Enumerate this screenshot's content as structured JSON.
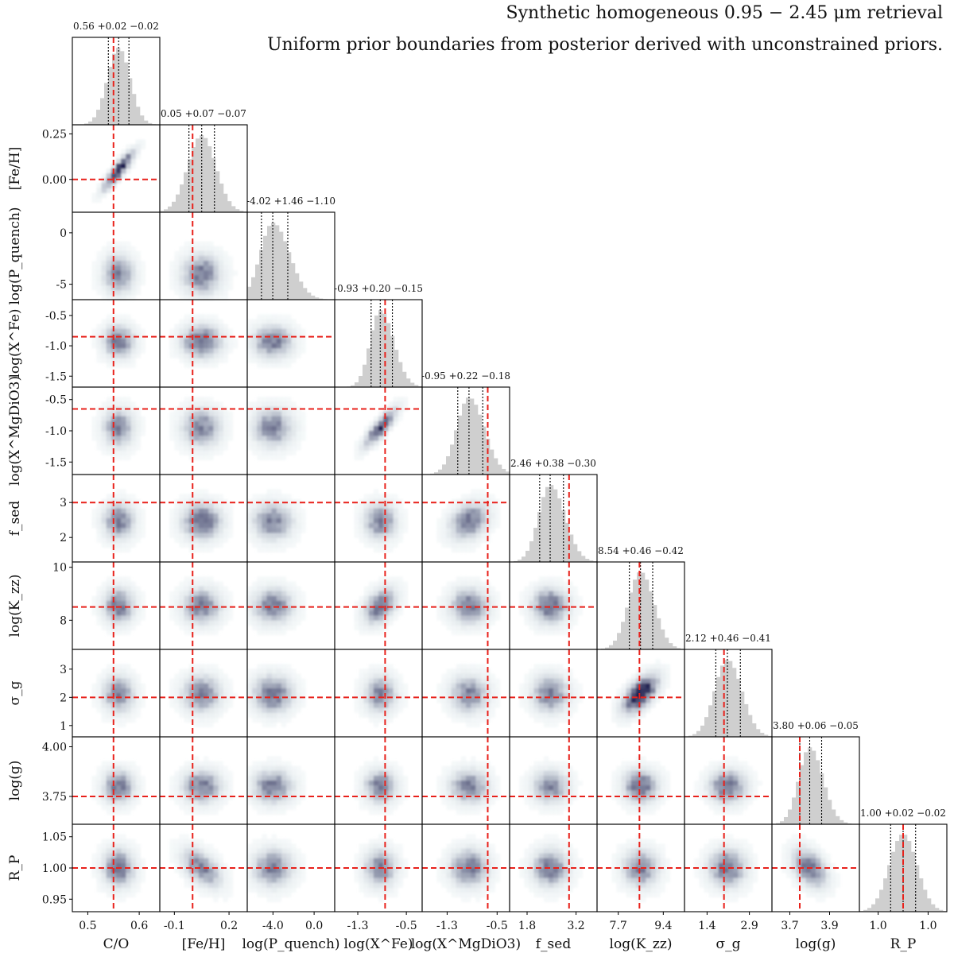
{
  "title": {
    "line1": "Synthetic homogeneous 0.95 − 2.45 μm retrieval",
    "line2": "Uniform prior boundaries from posterior derived with unconstrained priors."
  },
  "colors": {
    "truth": "#e8211b",
    "hist": "#cfcfcf",
    "density_low": "#e4eef0",
    "density_high": "#1f1f4f",
    "frame": "#000000"
  },
  "chart_data": {
    "type": "corner",
    "n_params": 10,
    "params": [
      {
        "name": "C/O",
        "stat": "0.56 +0.02 −0.02",
        "median": 0.56,
        "err_plus": 0.02,
        "err_minus": 0.02,
        "truth": 0.55,
        "range": [
          0.47,
          0.64
        ],
        "ticks": [
          "0.5",
          "0.6"
        ],
        "tick_vals": [
          0.5,
          0.6
        ],
        "ytick_labels": []
      },
      {
        "name": "[Fe/H]",
        "stat": "0.05 +0.07 −0.07",
        "median": 0.05,
        "err_plus": 0.07,
        "err_minus": 0.07,
        "truth": 0.0,
        "range": [
          -0.18,
          0.3
        ],
        "ticks": [
          "-0.1",
          "0.2"
        ],
        "tick_vals": [
          -0.1,
          0.2
        ],
        "ytick_labels": [
          "0.25",
          "0.00"
        ],
        "ytick_vals": [
          0.25,
          0.0
        ]
      },
      {
        "name": "log(P_quench)",
        "stat": "-4.02 +1.46 −1.10",
        "median": -4.02,
        "err_plus": 1.46,
        "err_minus": 1.1,
        "truth": null,
        "range": [
          -6.5,
          2.0
        ],
        "ticks": [
          "-4.0",
          "0.0"
        ],
        "tick_vals": [
          -4.0,
          0.0
        ],
        "ytick_labels": [
          "0",
          "-5"
        ],
        "ytick_vals": [
          0,
          -5
        ]
      },
      {
        "name": "log(X^Fe)",
        "stat": "-0.93 +0.20 −0.15",
        "median": -0.93,
        "err_plus": 0.2,
        "err_minus": 0.15,
        "truth": -0.85,
        "range": [
          -1.68,
          -0.24
        ],
        "ticks": [
          "-1.3",
          "-0.5"
        ],
        "tick_vals": [
          -1.3,
          -0.5
        ],
        "ytick_labels": [
          "-0.5",
          "-1.0",
          "-1.5"
        ],
        "ytick_vals": [
          -0.5,
          -1.0,
          -1.5
        ]
      },
      {
        "name": "log(X^MgDiO3)",
        "stat": "-0.95 +0.22 −0.18",
        "median": -0.95,
        "err_plus": 0.22,
        "err_minus": 0.18,
        "truth": -0.65,
        "range": [
          -1.7,
          -0.3
        ],
        "ticks": [
          "-1.3",
          "-0.5"
        ],
        "tick_vals": [
          -1.3,
          -0.5
        ],
        "ytick_labels": [
          "-0.5",
          "-1.0",
          "-1.5"
        ],
        "ytick_vals": [
          -0.5,
          -1.0,
          -1.5
        ]
      },
      {
        "name": "f_sed",
        "stat": "2.46 +0.38 −0.30",
        "median": 2.46,
        "err_plus": 0.38,
        "err_minus": 0.3,
        "truth": 3.0,
        "range": [
          1.3,
          3.8
        ],
        "ticks": [
          "1.8",
          "3.2"
        ],
        "tick_vals": [
          1.8,
          3.2
        ],
        "ytick_labels": [
          "3",
          "2"
        ],
        "ytick_vals": [
          3,
          2
        ]
      },
      {
        "name": "log(K_zz)",
        "stat": "8.54 +0.46 −0.42",
        "median": 8.54,
        "err_plus": 0.46,
        "err_minus": 0.42,
        "truth": 8.5,
        "range": [
          6.9,
          10.2
        ],
        "ticks": [
          "7.7",
          "9.4"
        ],
        "tick_vals": [
          7.7,
          9.4
        ],
        "ytick_labels": [
          "10",
          "8"
        ],
        "ytick_vals": [
          10,
          8
        ]
      },
      {
        "name": "σ_g",
        "stat": "2.12 +0.46 −0.41",
        "median": 2.12,
        "err_plus": 0.46,
        "err_minus": 0.41,
        "truth": 2.0,
        "range": [
          0.6,
          3.7
        ],
        "ticks": [
          "1.4",
          "2.9"
        ],
        "tick_vals": [
          1.4,
          2.9
        ],
        "ytick_labels": [
          "3",
          "2",
          "1"
        ],
        "ytick_vals": [
          3,
          2,
          1
        ]
      },
      {
        "name": "log(g)",
        "stat": "3.80 +0.06 −0.05",
        "median": 3.8,
        "err_plus": 0.06,
        "err_minus": 0.05,
        "truth": 3.75,
        "range": [
          3.61,
          4.05
        ],
        "ticks": [
          "3.7",
          "3.9"
        ],
        "tick_vals": [
          3.7,
          3.9
        ],
        "ytick_labels": [
          "4.00",
          "3.75"
        ],
        "ytick_vals": [
          4.0,
          3.75
        ]
      },
      {
        "name": "R_P",
        "stat": "1.00 +0.02 −0.02",
        "median": 1.0,
        "err_plus": 0.02,
        "err_minus": 0.02,
        "truth": 1.0,
        "range": [
          0.93,
          1.07
        ],
        "ticks": [
          "1.0",
          "1.0"
        ],
        "tick_vals": [
          0.96,
          1.04
        ],
        "ytick_labels": [
          "1.05",
          "1.00",
          "0.95"
        ],
        "ytick_vals": [
          1.05,
          1.0,
          0.95
        ]
      }
    ],
    "correlations": [
      {
        "i": 1,
        "j": 0,
        "rho": 0.9
      },
      {
        "i": 4,
        "j": 3,
        "rho": 0.85
      },
      {
        "i": 7,
        "j": 6,
        "rho": 0.6
      },
      {
        "i": 9,
        "j": 1,
        "rho": -0.5
      },
      {
        "i": 9,
        "j": 8,
        "rho": -0.4
      },
      {
        "i": 6,
        "j": 3,
        "rho": 0.4
      },
      {
        "i": 5,
        "j": 4,
        "rho": 0.3
      }
    ]
  }
}
